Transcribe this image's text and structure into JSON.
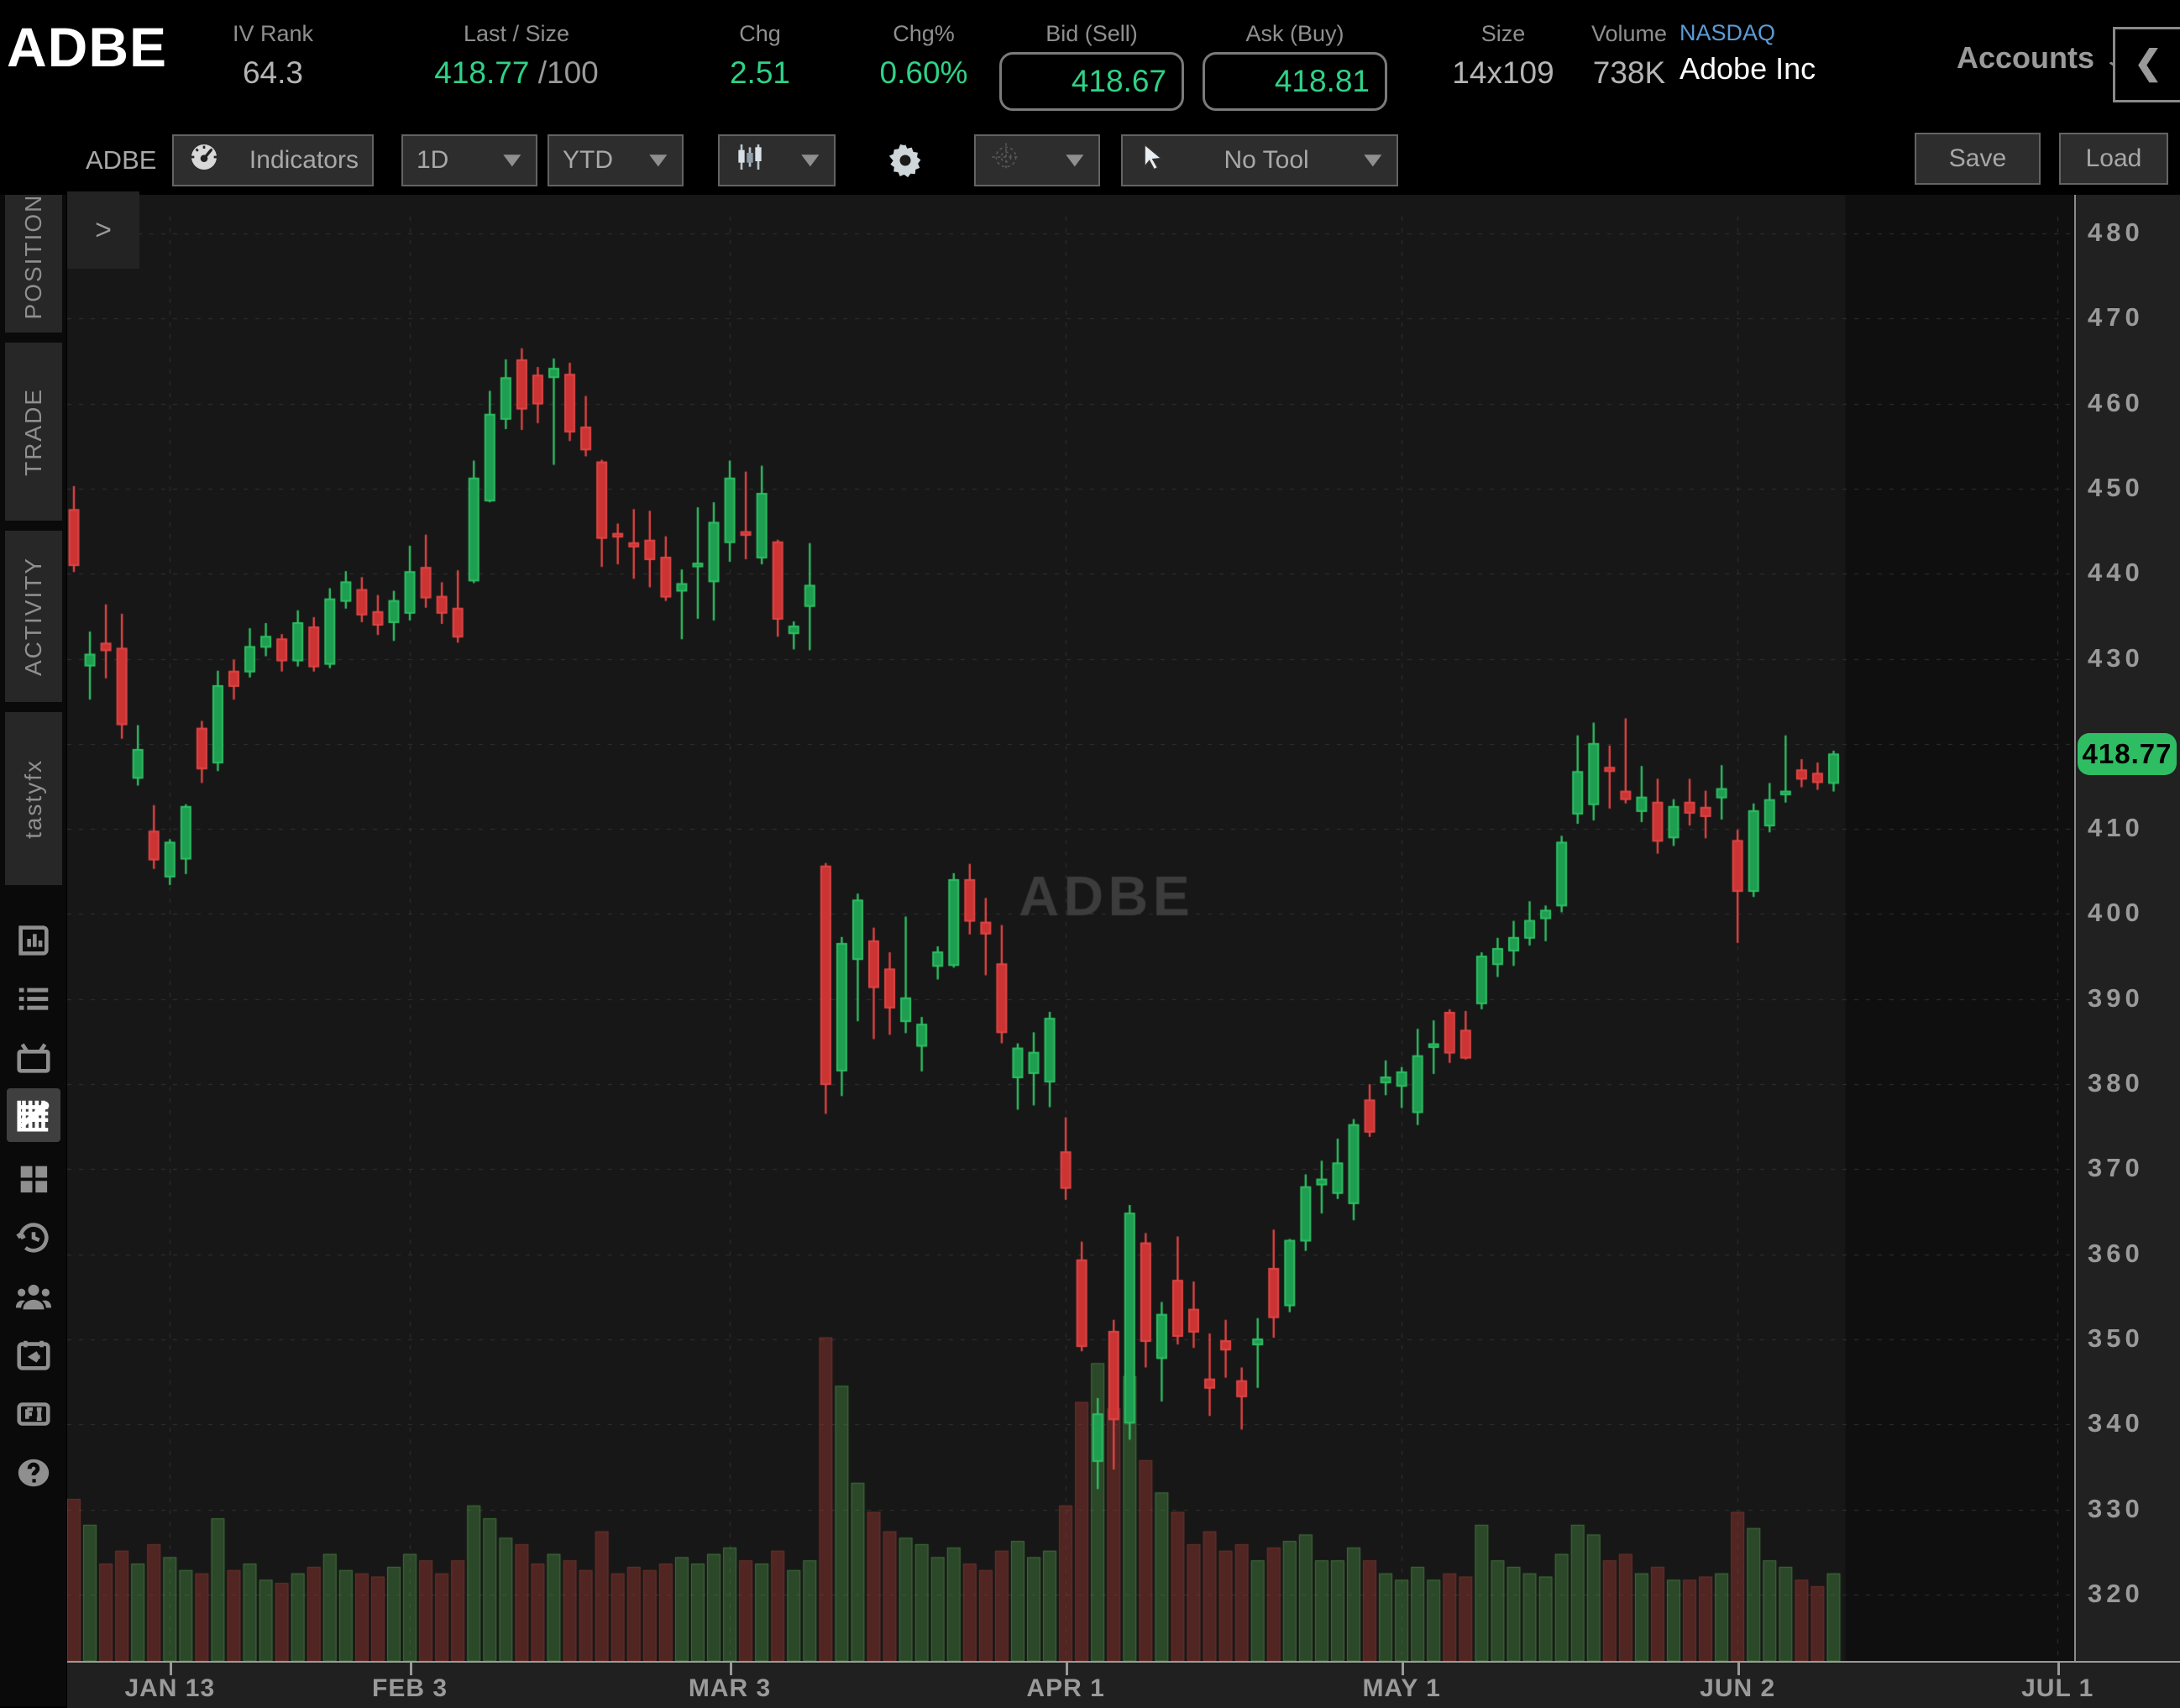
{
  "header": {
    "symbol": "ADBE",
    "iv_rank": {
      "label": "IV Rank",
      "value": "64.3"
    },
    "last_size": {
      "label": "Last / Size",
      "value": "418.77",
      "suffix": " /100"
    },
    "chg": {
      "label": "Chg",
      "value": "2.51"
    },
    "chg_pct": {
      "label": "Chg%",
      "value": "0.60%"
    },
    "bid": {
      "label": "Bid (Sell)",
      "value": "418.67"
    },
    "ask": {
      "label": "Ask (Buy)",
      "value": "418.81"
    },
    "size": {
      "label": "Size",
      "value": "14x109"
    },
    "volume": {
      "label": "Volume",
      "value": "738K"
    },
    "exchange": "NASDAQ",
    "company": "Adobe Inc",
    "accounts_label": "Accounts",
    "accounts_chevron": "⌄",
    "collapse_button": "❮"
  },
  "sidebar": {
    "tabs": [
      "POSITIONS",
      "TRADE",
      "ACTIVITY",
      "tastyfx"
    ],
    "icons": [
      "research-journal-icon",
      "watchlist-icon",
      "tv-icon",
      "chart-icon",
      "grid-icon",
      "history-clock-icon",
      "follow-traders-icon",
      "calendar-back-icon",
      "fi-icon",
      "help-icon"
    ],
    "active_icon": "chart-icon"
  },
  "toolbar": {
    "symbol_label": "ADBE",
    "indicators_label": "Indicators",
    "timeframe": "1D",
    "range": "YTD",
    "tool_label": "No Tool",
    "zoom_minus": "−",
    "zoom_plus": "+",
    "save_label": "Save",
    "load_label": "Load",
    "dropdown_arrow": "▼"
  },
  "chart_data": {
    "type": "candlestick_with_volume",
    "symbol": "ADBE",
    "watermark": "ADBE",
    "expander": ">",
    "last_price": "418.77",
    "y_axis": {
      "min": 320,
      "max": 480,
      "step": 10,
      "labels": [
        "480",
        "470",
        "460",
        "450",
        "440",
        "430",
        "420",
        "410",
        "400",
        "390",
        "380",
        "370",
        "360",
        "350",
        "340",
        "330",
        "320"
      ]
    },
    "x_ticks": [
      {
        "label": "JAN 13",
        "index": 6
      },
      {
        "label": "FEB 3",
        "index": 21
      },
      {
        "label": "MAR 3",
        "index": 41
      },
      {
        "label": "APR 1",
        "index": 62
      },
      {
        "label": "MAY 1",
        "index": 83
      },
      {
        "label": "JUN 2",
        "index": 104
      },
      {
        "label": "JUL 1",
        "index": 124
      }
    ],
    "colors": {
      "up_stroke": "#2fbf63",
      "up_fill": "#1d9e50",
      "down_stroke": "#e04545",
      "down_fill": "#cc3434",
      "volume_up": "rgba(72,140,66,0.42)",
      "volume_down": "rgba(150,56,48,0.45)",
      "grid": "#323232",
      "watermark": "#3c3c3c",
      "tag_bg": "#2ebd62",
      "accent_green": "#2fd287",
      "nasdaq_blue": "#5b9bd5"
    },
    "candles": [
      [
        447.5,
        450.3,
        440.2,
        441.0,
        0.5
      ],
      [
        429.2,
        433.2,
        425.2,
        430.5,
        0.42
      ],
      [
        431.8,
        436.4,
        427.7,
        431.0,
        0.3
      ],
      [
        431.2,
        435.3,
        420.6,
        422.3,
        0.34
      ],
      [
        416.0,
        422.2,
        415.1,
        419.3,
        0.3
      ],
      [
        409.7,
        412.8,
        405.3,
        406.4,
        0.36
      ],
      [
        404.4,
        408.8,
        403.4,
        408.4,
        0.32
      ],
      [
        406.5,
        412.9,
        404.7,
        412.6,
        0.28
      ],
      [
        421.8,
        422.7,
        415.4,
        417.1,
        0.27
      ],
      [
        417.8,
        428.6,
        416.8,
        426.8,
        0.44
      ],
      [
        428.5,
        429.9,
        425.2,
        426.8,
        0.28
      ],
      [
        428.5,
        433.6,
        427.8,
        431.4,
        0.3
      ],
      [
        431.4,
        434.2,
        430.3,
        432.6,
        0.25
      ],
      [
        432.3,
        432.9,
        428.5,
        429.8,
        0.24
      ],
      [
        429.8,
        435.7,
        429.1,
        434.2,
        0.27
      ],
      [
        433.7,
        434.9,
        428.5,
        429.1,
        0.29
      ],
      [
        429.4,
        438.3,
        428.9,
        437.0,
        0.33
      ],
      [
        436.8,
        440.3,
        435.9,
        439.0,
        0.28
      ],
      [
        438.1,
        439.6,
        434.3,
        435.2,
        0.27
      ],
      [
        435.5,
        437.5,
        432.8,
        434.0,
        0.26
      ],
      [
        434.3,
        438.0,
        432.1,
        436.8,
        0.29
      ],
      [
        435.4,
        443.3,
        434.5,
        440.2,
        0.33
      ],
      [
        440.7,
        444.6,
        436.0,
        437.2,
        0.31
      ],
      [
        437.3,
        439.0,
        434.1,
        435.4,
        0.27
      ],
      [
        435.9,
        440.4,
        431.9,
        432.6,
        0.31
      ],
      [
        439.2,
        453.3,
        438.9,
        451.2,
        0.48
      ],
      [
        448.6,
        461.5,
        448.4,
        458.7,
        0.44
      ],
      [
        458.2,
        465.2,
        457.0,
        463.0,
        0.38
      ],
      [
        465.1,
        466.5,
        456.9,
        459.4,
        0.36
      ],
      [
        463.3,
        464.3,
        457.7,
        460.0,
        0.3
      ],
      [
        463.1,
        465.3,
        452.8,
        464.1,
        0.33
      ],
      [
        463.4,
        464.8,
        455.6,
        456.7,
        0.31
      ],
      [
        457.2,
        460.9,
        453.8,
        454.6,
        0.28
      ],
      [
        453.1,
        453.4,
        440.8,
        444.2,
        0.4
      ],
      [
        444.7,
        445.9,
        441.1,
        444.4,
        0.27
      ],
      [
        443.6,
        447.6,
        439.4,
        443.2,
        0.29
      ],
      [
        443.9,
        447.4,
        438.4,
        441.7,
        0.28
      ],
      [
        441.9,
        444.4,
        436.8,
        437.3,
        0.3
      ],
      [
        438.0,
        440.5,
        432.3,
        438.8,
        0.32
      ],
      [
        441.0,
        447.8,
        434.7,
        441.2,
        0.3
      ],
      [
        439.1,
        448.4,
        434.5,
        446.0,
        0.33
      ],
      [
        443.7,
        453.3,
        441.4,
        451.2,
        0.35
      ],
      [
        444.9,
        452.0,
        441.7,
        444.7,
        0.31
      ],
      [
        441.9,
        452.7,
        441.1,
        449.4,
        0.3
      ],
      [
        443.7,
        444.0,
        432.6,
        434.7,
        0.34
      ],
      [
        433.0,
        434.4,
        431.1,
        433.8,
        0.28
      ],
      [
        436.2,
        443.6,
        431.0,
        438.6,
        0.31
      ],
      [
        405.6,
        406.0,
        376.5,
        380.0,
        1.0
      ],
      [
        381.6,
        397.3,
        378.6,
        396.5,
        0.85
      ],
      [
        394.7,
        402.4,
        387.4,
        401.6,
        0.55
      ],
      [
        396.8,
        398.4,
        385.3,
        391.4,
        0.46
      ],
      [
        393.5,
        395.5,
        385.8,
        389.0,
        0.4
      ],
      [
        387.4,
        399.7,
        386.0,
        390.1,
        0.38
      ],
      [
        384.5,
        387.9,
        381.5,
        387.0,
        0.36
      ],
      [
        393.9,
        396.2,
        392.3,
        395.5,
        0.32
      ],
      [
        394.0,
        404.8,
        393.7,
        404.0,
        0.35
      ],
      [
        404.0,
        405.9,
        397.6,
        399.2,
        0.3
      ],
      [
        399.0,
        401.9,
        392.8,
        397.7,
        0.28
      ],
      [
        394.1,
        398.7,
        384.8,
        386.1,
        0.34
      ],
      [
        380.8,
        384.8,
        377.0,
        384.2,
        0.37
      ],
      [
        381.3,
        386.1,
        377.5,
        383.7,
        0.32
      ],
      [
        380.3,
        388.5,
        377.3,
        387.7,
        0.34
      ],
      [
        372.0,
        376.1,
        366.4,
        367.8,
        0.48
      ],
      [
        359.3,
        361.5,
        348.6,
        349.2,
        0.8
      ],
      [
        335.7,
        343.1,
        332.4,
        341.2,
        0.92
      ],
      [
        350.9,
        352.3,
        334.7,
        340.6,
        0.78
      ],
      [
        340.2,
        365.8,
        338.2,
        364.8,
        0.88
      ],
      [
        361.3,
        362.5,
        346.7,
        349.8,
        0.62
      ],
      [
        347.8,
        354.4,
        342.7,
        352.9,
        0.52
      ],
      [
        356.9,
        362.1,
        349.4,
        350.4,
        0.46
      ],
      [
        353.5,
        356.8,
        349.0,
        350.9,
        0.36
      ],
      [
        345.3,
        350.7,
        341.0,
        344.3,
        0.4
      ],
      [
        349.8,
        352.3,
        345.5,
        348.8,
        0.34
      ],
      [
        345.1,
        346.7,
        339.4,
        343.3,
        0.36
      ],
      [
        349.4,
        352.5,
        344.3,
        350.0,
        0.31
      ],
      [
        358.3,
        362.9,
        350.2,
        352.6,
        0.35
      ],
      [
        354.0,
        361.8,
        353.2,
        361.6,
        0.37
      ],
      [
        361.6,
        369.4,
        360.4,
        367.9,
        0.39
      ],
      [
        368.2,
        371.0,
        364.8,
        368.8,
        0.31
      ],
      [
        367.2,
        373.6,
        366.5,
        370.7,
        0.31
      ],
      [
        366.0,
        375.9,
        364.0,
        375.2,
        0.35
      ],
      [
        378.1,
        380.0,
        373.8,
        374.4,
        0.31
      ],
      [
        380.2,
        382.8,
        378.7,
        380.8,
        0.27
      ],
      [
        379.8,
        382.0,
        377.2,
        381.4,
        0.25
      ],
      [
        376.7,
        386.5,
        375.2,
        383.3,
        0.29
      ],
      [
        384.7,
        387.5,
        381.2,
        384.7,
        0.25
      ],
      [
        388.4,
        388.8,
        382.5,
        383.7,
        0.27
      ],
      [
        386.3,
        388.6,
        382.9,
        383.1,
        0.26
      ],
      [
        389.5,
        395.5,
        388.8,
        395.0,
        0.42
      ],
      [
        394.1,
        397.2,
        392.6,
        395.9,
        0.31
      ],
      [
        395.7,
        399.2,
        393.9,
        397.2,
        0.29
      ],
      [
        397.2,
        401.5,
        396.3,
        399.2,
        0.27
      ],
      [
        399.5,
        401.0,
        396.8,
        400.4,
        0.26
      ],
      [
        401.0,
        409.2,
        400.2,
        408.4,
        0.33
      ],
      [
        411.8,
        421.0,
        410.6,
        416.7,
        0.42
      ],
      [
        412.9,
        422.5,
        411.0,
        420.0,
        0.39
      ],
      [
        417.2,
        419.8,
        412.4,
        416.8,
        0.31
      ],
      [
        414.4,
        423.0,
        413.0,
        413.5,
        0.33
      ],
      [
        412.1,
        417.4,
        410.8,
        413.7,
        0.27
      ],
      [
        413.1,
        415.9,
        407.1,
        408.6,
        0.29
      ],
      [
        409.0,
        413.5,
        408.0,
        412.6,
        0.25
      ],
      [
        413.1,
        415.9,
        410.4,
        411.9,
        0.25
      ],
      [
        412.5,
        414.5,
        408.9,
        411.5,
        0.26
      ],
      [
        413.7,
        417.5,
        411.1,
        414.7,
        0.27
      ],
      [
        408.6,
        409.9,
        396.6,
        402.7,
        0.46
      ],
      [
        402.7,
        413.0,
        402.0,
        412.1,
        0.41
      ],
      [
        410.4,
        415.4,
        409.6,
        413.4,
        0.31
      ],
      [
        414.2,
        421.0,
        413.1,
        414.4,
        0.29
      ],
      [
        416.9,
        418.2,
        414.9,
        415.9,
        0.25
      ],
      [
        416.5,
        417.8,
        414.6,
        415.5,
        0.23
      ],
      [
        415.4,
        419.2,
        414.4,
        418.77,
        0.27
      ]
    ]
  }
}
